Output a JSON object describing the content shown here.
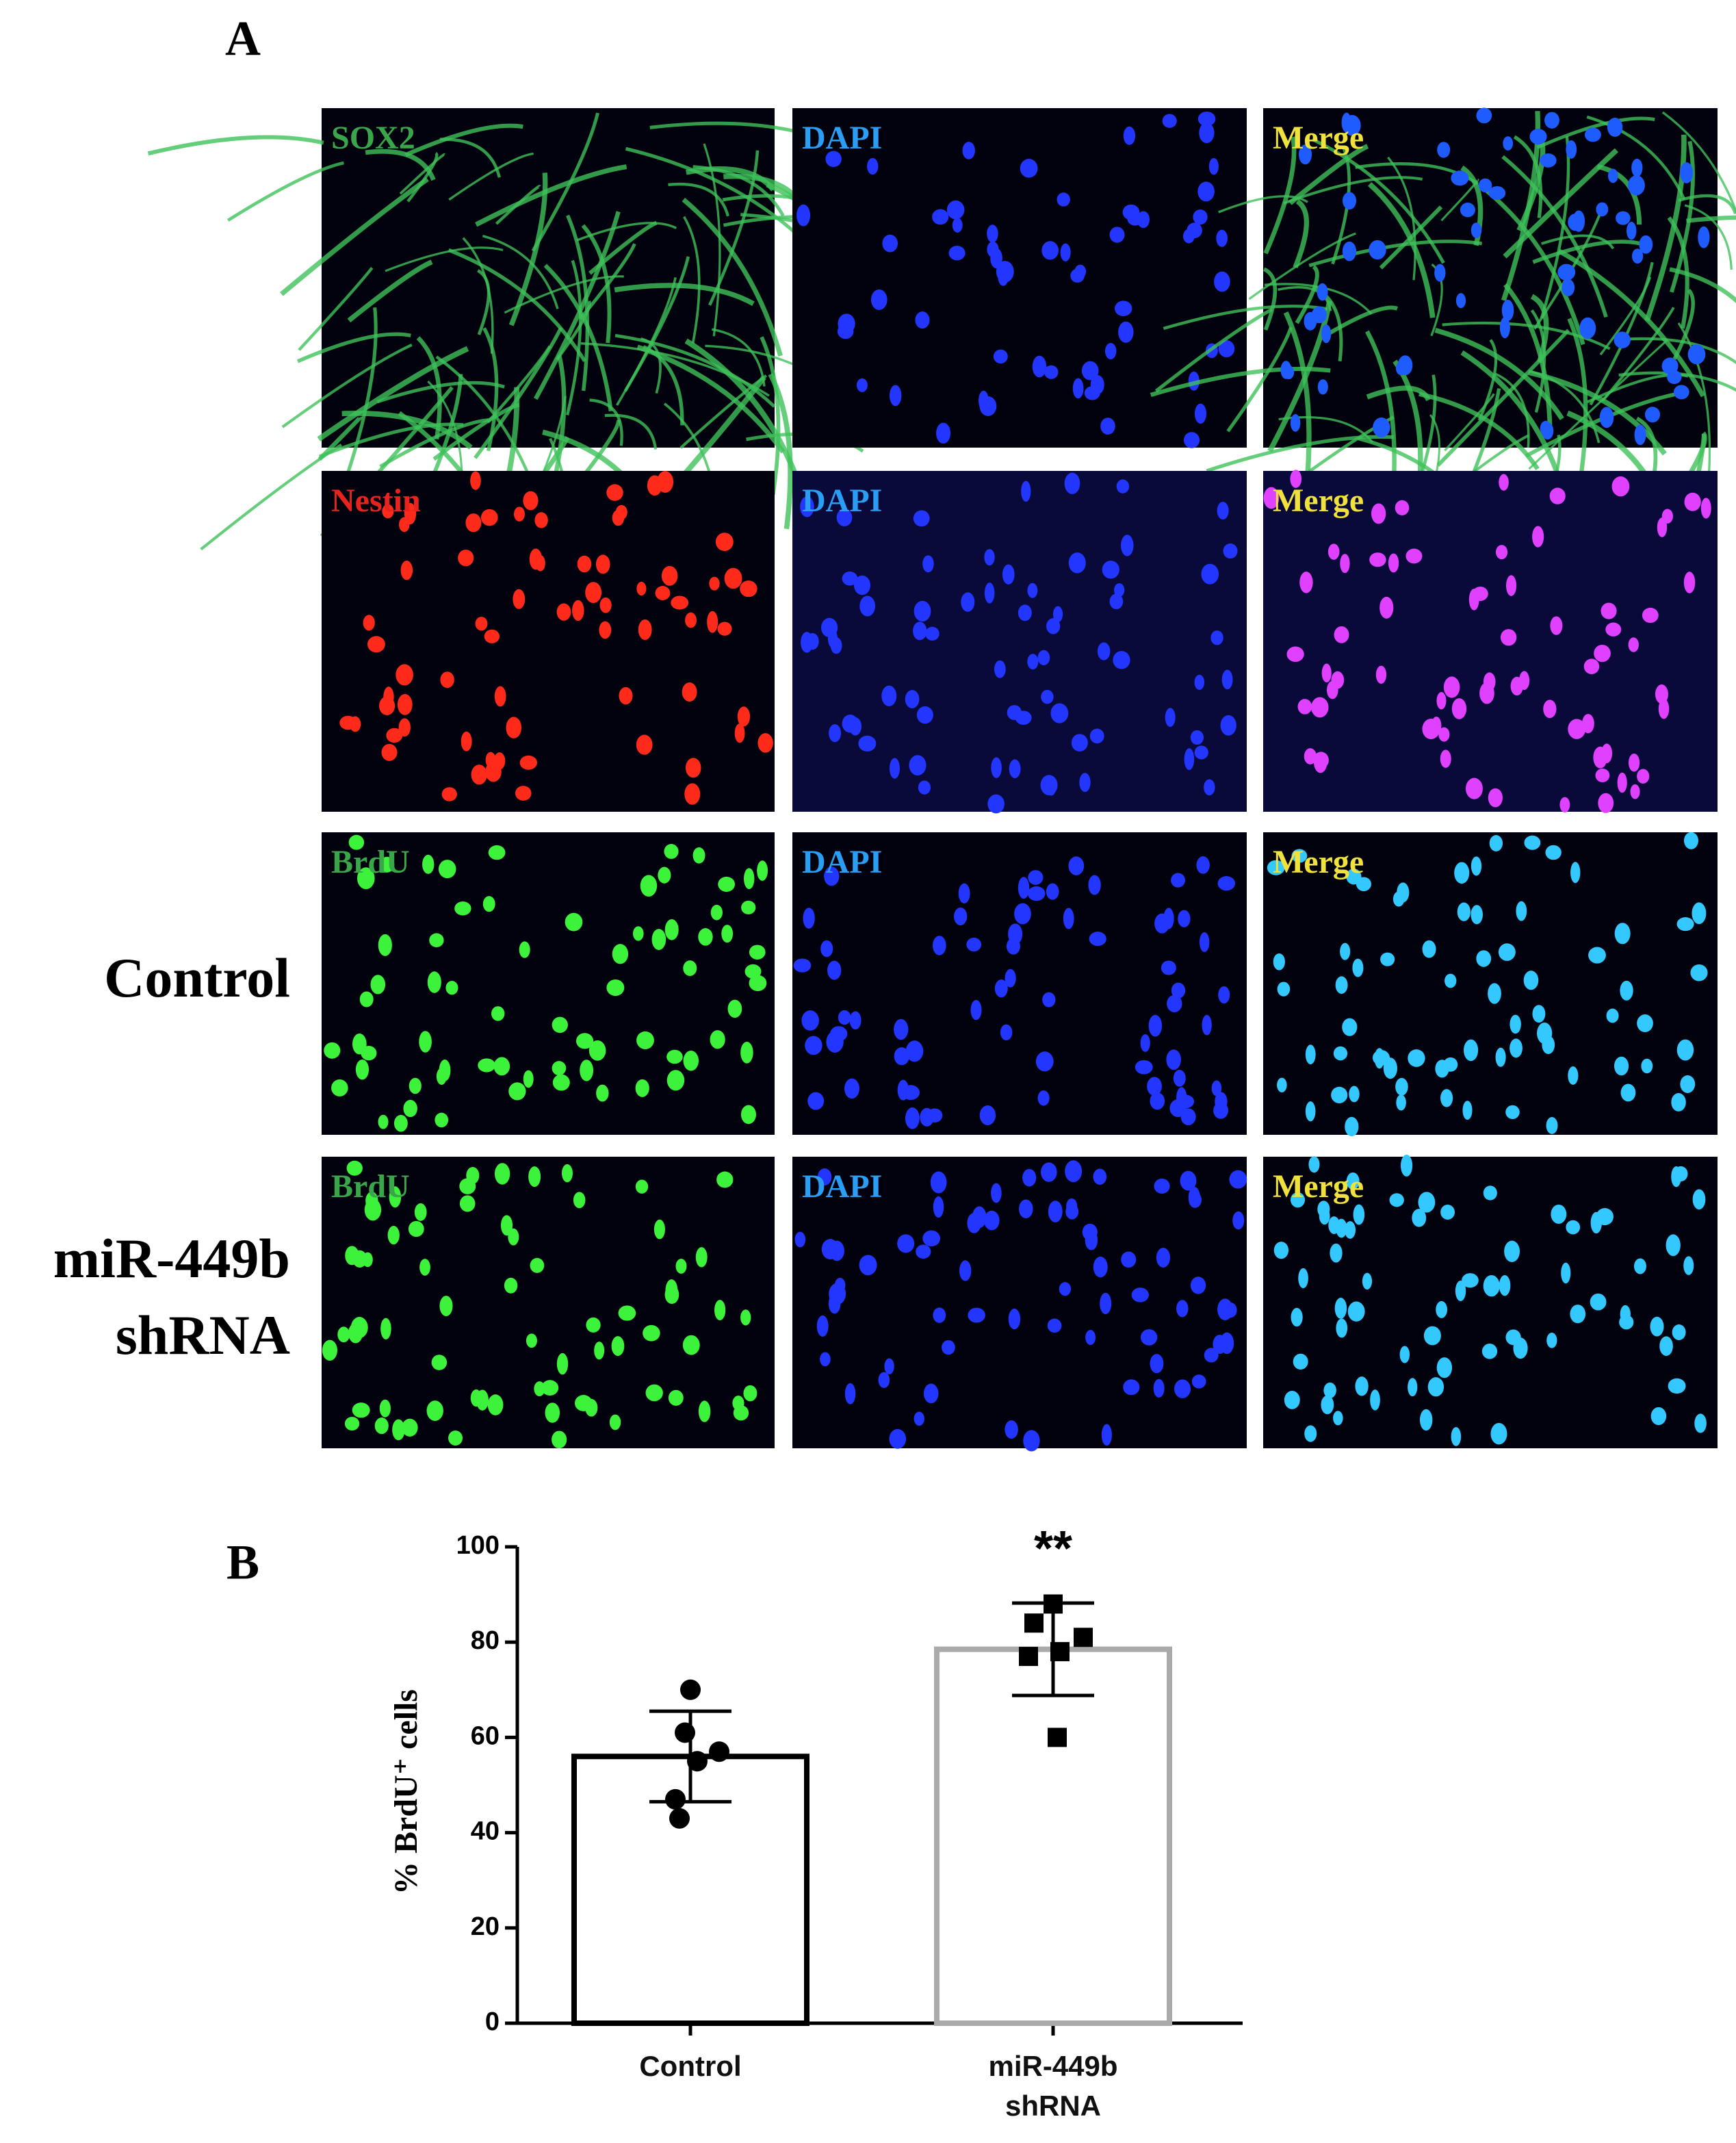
{
  "panel_a": {
    "label": "A",
    "images": [
      [
        "SOX2",
        "DAPI",
        "Merge"
      ],
      [
        "Nestin",
        "DAPI",
        "Merge"
      ],
      [
        "BrdU",
        "DAPI",
        "Merge"
      ],
      [
        "BrdU",
        "DAPI",
        "Merge"
      ]
    ],
    "row_labels": {
      "2": [
        "Control"
      ],
      "3": [
        "miR-449b",
        "shRNA"
      ]
    }
  },
  "chart_data": {
    "type": "bar",
    "panel_label": "B",
    "ylabel": "% BrdU⁺ cells",
    "categories": [
      "Control",
      "miR-449b shRNA"
    ],
    "values": [
      56,
      78.5
    ],
    "errors": [
      9.5,
      9.7
    ],
    "points": [
      [
        70,
        61,
        57,
        55,
        47,
        43
      ],
      [
        88,
        84,
        81,
        78,
        77,
        60
      ]
    ],
    "markers": [
      "circle",
      "square"
    ],
    "colors": [
      "#000000",
      "#aaaaaa"
    ],
    "annotations": [
      null,
      "**"
    ],
    "ylim": [
      0,
      100
    ],
    "yticks": [
      0,
      20,
      40,
      60,
      80,
      100
    ]
  }
}
